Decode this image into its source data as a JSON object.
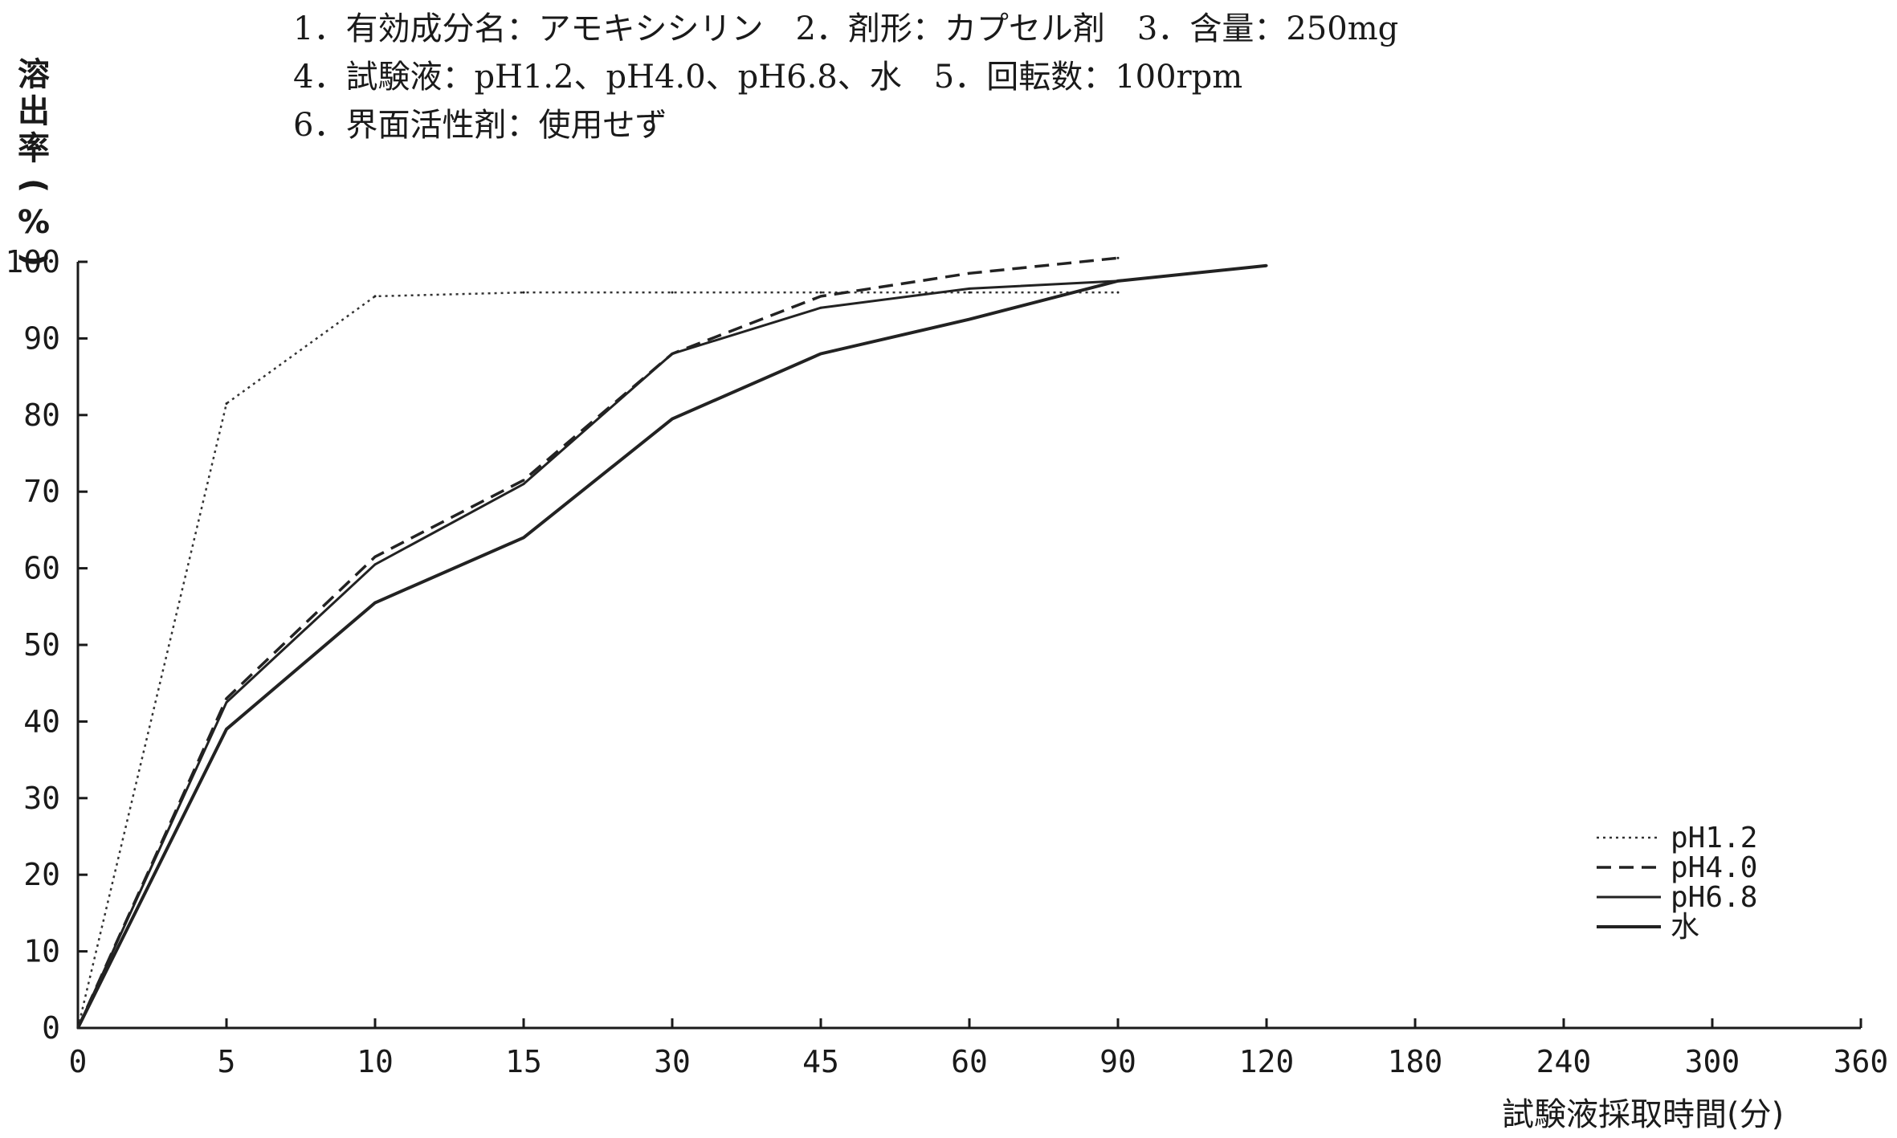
{
  "chart_data": {
    "type": "line",
    "title_lines": [
      "1．有効成分名：アモキシシリン　2．剤形：カプセル剤　3．含量：250mg",
      "4．試験液：pH1.2、pH4.0、pH6.8、水　5．回転数：100rpm",
      "6．界面活性剤：使用せず"
    ],
    "ylabel": "溶出率(%)",
    "ylabel_chars": [
      "溶",
      "出",
      "率",
      "(",
      "%",
      ")"
    ],
    "xlabel": "試験液採取時間(分)",
    "x_categories": [
      "0",
      "5",
      "10",
      "15",
      "30",
      "45",
      "60",
      "90",
      "120",
      "180",
      "240",
      "300",
      "360"
    ],
    "y_ticks": [
      "0",
      "10",
      "20",
      "30",
      "40",
      "50",
      "60",
      "70",
      "80",
      "90",
      "100"
    ],
    "ylim": [
      0,
      100
    ],
    "legend_position": "bottom-right",
    "series": [
      {
        "name": "pH1.2",
        "style": "dotted",
        "x": [
          "0",
          "5",
          "10",
          "15",
          "30",
          "45",
          "60",
          "90"
        ],
        "values": [
          0,
          81.5,
          95.5,
          96,
          96,
          96,
          96,
          96
        ]
      },
      {
        "name": "pH4.0",
        "style": "dashed",
        "x": [
          "0",
          "5",
          "10",
          "15",
          "30",
          "45",
          "60",
          "90"
        ],
        "values": [
          0,
          43,
          61.5,
          71.5,
          88,
          95.5,
          98.5,
          100.5
        ]
      },
      {
        "name": "pH6.8",
        "style": "solid",
        "x": [
          "0",
          "5",
          "10",
          "15",
          "30",
          "45",
          "60",
          "90",
          "120"
        ],
        "values": [
          0,
          42.5,
          60.5,
          71,
          88,
          94,
          96.5,
          97.5,
          99.5
        ]
      },
      {
        "name": "水",
        "style": "double",
        "x": [
          "0",
          "5",
          "10",
          "15",
          "30",
          "45",
          "60",
          "90",
          "120"
        ],
        "values": [
          0,
          39,
          55.5,
          64,
          79.5,
          88,
          92.5,
          97.5,
          99.5
        ]
      }
    ]
  }
}
